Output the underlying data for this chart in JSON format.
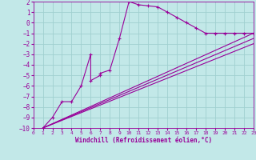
{
  "xlabel": "Windchill (Refroidissement éolien,°C)",
  "bg_color": "#c2e8e8",
  "grid_color": "#a0d0d0",
  "line_color": "#990099",
  "xlim": [
    0,
    23
  ],
  "ylim": [
    -10,
    2
  ],
  "xticks": [
    0,
    1,
    2,
    3,
    4,
    5,
    6,
    7,
    8,
    9,
    10,
    11,
    12,
    13,
    14,
    15,
    16,
    17,
    18,
    19,
    20,
    21,
    22,
    23
  ],
  "yticks": [
    2,
    1,
    0,
    -1,
    -2,
    -3,
    -4,
    -5,
    -6,
    -7,
    -8,
    -9,
    -10
  ],
  "main_line_x": [
    1,
    2,
    3,
    4,
    5,
    6,
    6,
    7,
    7,
    8,
    9,
    10,
    11,
    12,
    13,
    14,
    15,
    16,
    17,
    18,
    19,
    20,
    21,
    22,
    23
  ],
  "main_line_y": [
    -10,
    -9,
    -7.5,
    -7.5,
    -6,
    -3,
    -5.5,
    -5,
    -4.8,
    -4.5,
    -1.5,
    2,
    1.7,
    1.6,
    1.5,
    1.0,
    0.5,
    0.0,
    -0.5,
    -1.0,
    -1.0,
    -1.0,
    -1.0,
    -1.0,
    -1.0
  ],
  "ref_line1_x": [
    1,
    23
  ],
  "ref_line1_y": [
    -10,
    -1.0
  ],
  "ref_line2_x": [
    1,
    23
  ],
  "ref_line2_y": [
    -10,
    -2.0
  ],
  "ref_line3_x": [
    1,
    23
  ],
  "ref_line3_y": [
    -10,
    -1.5
  ]
}
